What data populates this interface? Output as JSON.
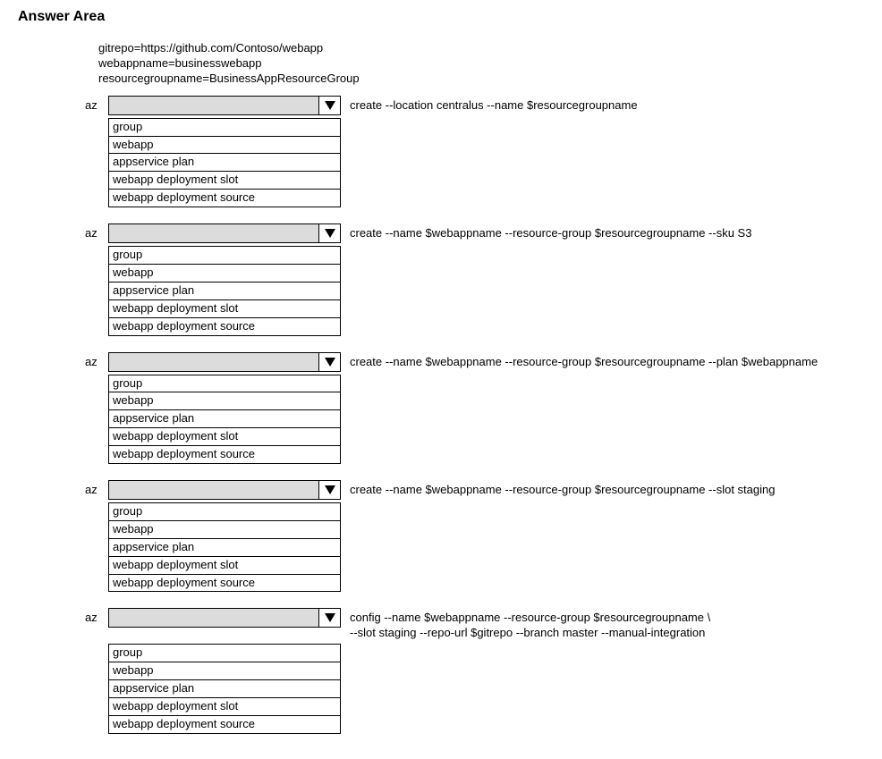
{
  "title": "Answer Area",
  "vars": {
    "line1": "gitrepo=https://github.com/Contoso/webapp",
    "line2": "webappname=businesswebapp",
    "line3": "resourcegroupname=BusinessAppResourceGroup"
  },
  "dropdown_options": [
    "group",
    "webapp",
    "appservice plan",
    "webapp deployment slot",
    "webapp deployment source"
  ],
  "commands": [
    {
      "prefix": "az",
      "suffix": "create --location centralus --name $resourcegroupname"
    },
    {
      "prefix": "az",
      "suffix": "create --name $webappname --resource-group $resourcegroupname --sku S3"
    },
    {
      "prefix": "az",
      "suffix": "create --name $webappname --resource-group $resourcegroupname --plan $webappname"
    },
    {
      "prefix": "az",
      "suffix": "create --name $webappname --resource-group $resourcegroupname --slot staging"
    },
    {
      "prefix": "az",
      "suffix": "config --name $webappname --resource-group $resourcegroupname \\\n--slot staging --repo-url $gitrepo --branch master --manual-integration"
    }
  ],
  "colors": {
    "dropdown_bg": "#dcdcdc",
    "border": "#000000",
    "text": "#000000",
    "bg": "#ffffff"
  }
}
